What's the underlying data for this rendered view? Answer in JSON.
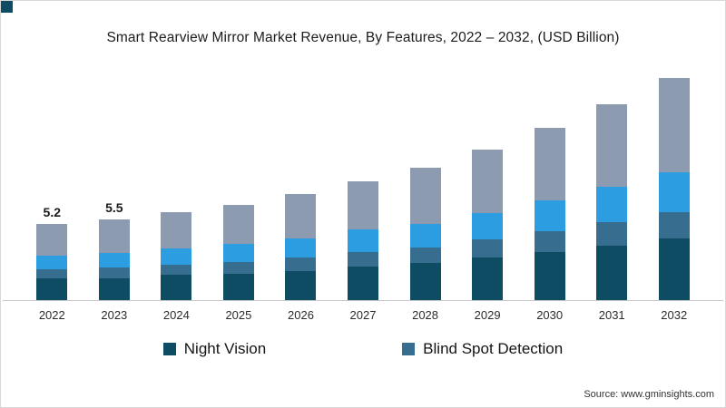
{
  "chart_data": {
    "type": "bar",
    "stacked": true,
    "title": "Smart Rearview Mirror Market Revenue, By Features, 2022 – 2032, (USD Billion)",
    "categories": [
      "2022",
      "2023",
      "2024",
      "2025",
      "2026",
      "2027",
      "2028",
      "2029",
      "2030",
      "2031",
      "2032"
    ],
    "series": [
      {
        "name": "Night Vision",
        "color": "#0e4c63",
        "values": [
          1.5,
          1.5,
          1.7,
          1.8,
          2.0,
          2.3,
          2.5,
          2.9,
          3.3,
          3.7,
          4.2
        ]
      },
      {
        "name": "Blind Spot Detection",
        "color": "#376e8f",
        "values": [
          0.6,
          0.7,
          0.7,
          0.8,
          0.9,
          1.0,
          1.1,
          1.2,
          1.4,
          1.6,
          1.8
        ]
      },
      {
        "name": "",
        "color": "#2d9de2",
        "values": [
          0.9,
          1.0,
          1.1,
          1.2,
          1.3,
          1.5,
          1.6,
          1.8,
          2.1,
          2.4,
          2.7
        ]
      },
      {
        "name": "",
        "color": "#8d9bb0",
        "values": [
          2.2,
          2.3,
          2.5,
          2.7,
          3.0,
          3.3,
          3.8,
          4.3,
          4.9,
          5.6,
          6.4
        ]
      }
    ],
    "totals": [
      5.2,
      5.5,
      6.0,
      6.5,
      7.2,
      8.1,
      9.0,
      10.2,
      11.7,
      13.3,
      15.1
    ],
    "data_labels": {
      "2022": "5.2",
      "2023": "5.5"
    },
    "legend": [
      {
        "label": "Night Vision",
        "color": "#0e4c63"
      },
      {
        "label": "Blind Spot Detection",
        "color": "#376e8f"
      }
    ],
    "legend_position": "bottom",
    "grid": false,
    "xlabel": "",
    "ylabel": ""
  },
  "source": {
    "text": "Source: www.gminsights.com"
  },
  "accent_color": "#0e4c63"
}
